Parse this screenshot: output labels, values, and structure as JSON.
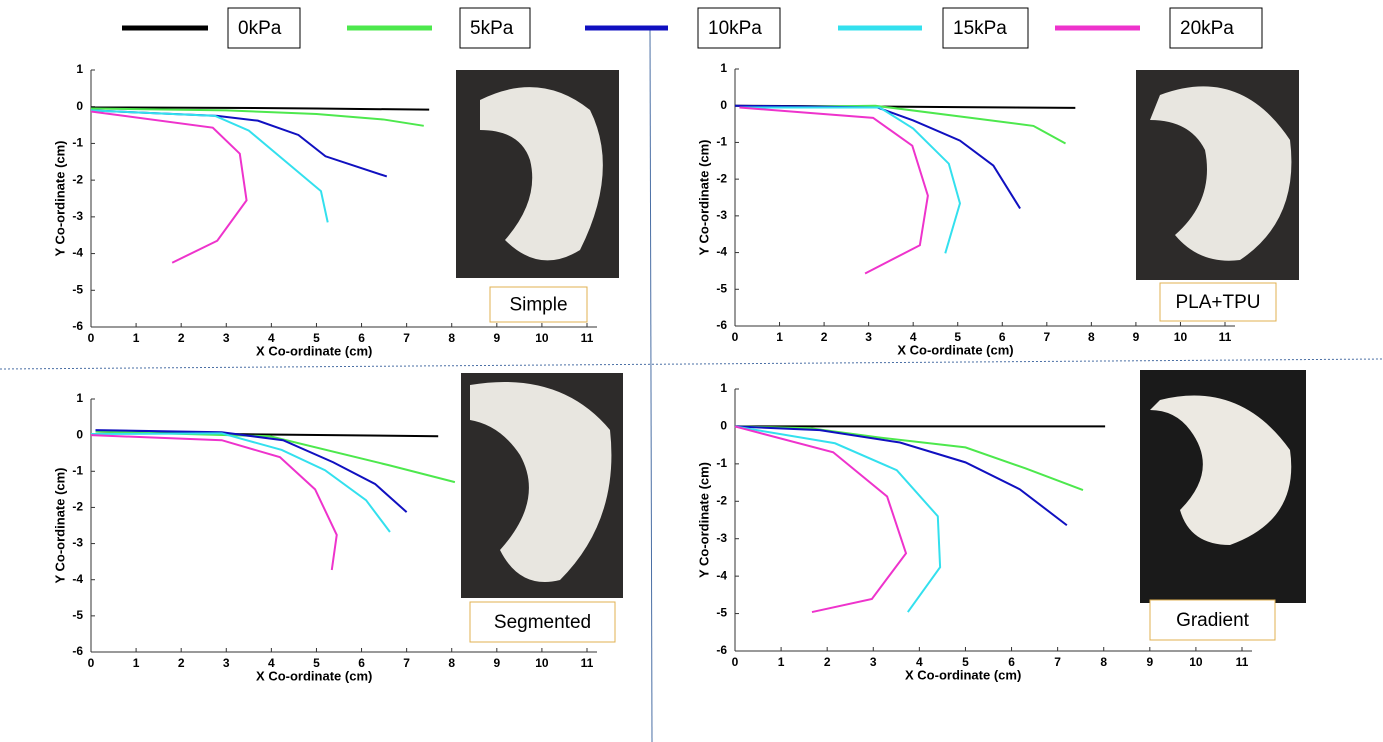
{
  "legend": [
    {
      "name": "0kPa",
      "color": "#000000"
    },
    {
      "name": "5kPa",
      "color": "#4de84d"
    },
    {
      "name": "10kPa",
      "color": "#1010c0"
    },
    {
      "name": "15kPa",
      "color": "#33e0ee"
    },
    {
      "name": "20kPa",
      "color": "#ee33cc"
    }
  ],
  "chart_data": [
    {
      "type": "line",
      "label": "Simple",
      "xlabel": "X Co-ordinate (cm)",
      "ylabel": "Y Co-ordinate (cm)",
      "xlim": [
        0,
        11
      ],
      "ylim": [
        -6,
        1
      ],
      "xticks": [
        0,
        1,
        2,
        3,
        4,
        5,
        6,
        7,
        8,
        9,
        10,
        11
      ],
      "yticks": [
        -6,
        -5,
        -4,
        -3,
        -2,
        -1,
        0,
        1
      ],
      "series": [
        {
          "x": [
            0,
            3,
            5,
            7.5
          ],
          "values": [
            -0.02,
            -0.03,
            -0.05,
            -0.08
          ]
        },
        {
          "x": [
            0,
            3,
            5,
            6.5,
            7.38
          ],
          "values": [
            -0.05,
            -0.1,
            -0.2,
            -0.35,
            -0.52
          ]
        },
        {
          "x": [
            0,
            2.8,
            3.7,
            4.6,
            5.2,
            6.56
          ],
          "values": [
            -0.1,
            -0.25,
            -0.38,
            -0.77,
            -1.35,
            -1.9
          ]
        },
        {
          "x": [
            0,
            2.75,
            3.5,
            5.1,
            5.25
          ],
          "values": [
            -0.1,
            -0.25,
            -0.65,
            -2.3,
            -3.15
          ]
        },
        {
          "x": [
            0,
            2.7,
            3.3,
            3.45,
            2.8,
            1.8
          ],
          "values": [
            -0.13,
            -0.57,
            -1.28,
            -2.55,
            -3.65,
            -4.25
          ]
        }
      ]
    },
    {
      "type": "line",
      "label": "PLA+TPU",
      "xlabel": "X Co-ordinate (cm)",
      "ylabel": "Y Co-ordinate (cm)",
      "xlim": [
        0,
        11
      ],
      "ylim": [
        -6,
        1
      ],
      "xticks": [
        0,
        1,
        2,
        3,
        4,
        5,
        6,
        7,
        8,
        9,
        10,
        11
      ],
      "yticks": [
        -6,
        -5,
        -4,
        -3,
        -2,
        -1,
        0,
        1
      ],
      "series": [
        {
          "x": [
            0,
            3,
            5,
            7.64
          ],
          "values": [
            0,
            -0.02,
            -0.04,
            -0.06
          ]
        },
        {
          "x": [
            0.1,
            3.15,
            5.3,
            6.7,
            7.42
          ],
          "values": [
            -0.05,
            0,
            -0.33,
            -0.55,
            -1.03
          ]
        },
        {
          "x": [
            0,
            3.2,
            4,
            5.05,
            5.8,
            6.4
          ],
          "values": [
            0,
            -0.05,
            -0.4,
            -0.95,
            -1.63,
            -2.8
          ]
        },
        {
          "x": [
            0.1,
            3.25,
            4,
            4.8,
            5.05,
            4.72
          ],
          "values": [
            -0.05,
            -0.05,
            -0.62,
            -1.58,
            -2.66,
            -4.02
          ]
        },
        {
          "x": [
            0.1,
            3.1,
            3.98,
            4.33,
            4.15,
            2.92
          ],
          "values": [
            -0.05,
            -0.33,
            -1.09,
            -2.45,
            -3.8,
            -4.57
          ]
        }
      ]
    },
    {
      "type": "line",
      "label": "Segmented",
      "xlabel": "X Co-ordinate (cm)",
      "ylabel": "Y Co-ordinate (cm)",
      "xlim": [
        0,
        11
      ],
      "ylim": [
        -6,
        1
      ],
      "xticks": [
        0,
        1,
        2,
        3,
        4,
        5,
        6,
        7,
        8,
        9,
        10,
        11
      ],
      "yticks": [
        -6,
        -5,
        -4,
        -3,
        -2,
        -1,
        0,
        1
      ],
      "series": [
        {
          "x": [
            0.1,
            3,
            7.7
          ],
          "values": [
            0.1,
            0.03,
            -0.03
          ]
        },
        {
          "x": [
            0.1,
            3.97,
            6.6,
            8.07
          ],
          "values": [
            0.1,
            -0.03,
            -0.83,
            -1.3
          ]
        },
        {
          "x": [
            0.1,
            2.9,
            4.26,
            5.37,
            6.3,
            7
          ],
          "values": [
            0.14,
            0.08,
            -0.14,
            -0.75,
            -1.35,
            -2.13
          ]
        },
        {
          "x": [
            0,
            2.9,
            4.23,
            5.19,
            6.1,
            6.63
          ],
          "values": [
            0.03,
            0.05,
            -0.41,
            -0.97,
            -1.8,
            -2.68
          ]
        },
        {
          "x": [
            0,
            2.9,
            4.19,
            4.97,
            5.45,
            5.34
          ],
          "values": [
            0,
            -0.14,
            -0.61,
            -1.5,
            -2.76,
            -3.73
          ]
        }
      ]
    },
    {
      "type": "line",
      "label": "Gradient",
      "xlabel": "X Co-ordinate (cm)",
      "ylabel": "Y Co-ordinate (cm)",
      "xlim": [
        0,
        11
      ],
      "ylim": [
        -6,
        1
      ],
      "xticks": [
        0,
        1,
        2,
        3,
        4,
        5,
        6,
        7,
        8,
        9,
        10,
        11
      ],
      "yticks": [
        -6,
        -5,
        -4,
        -3,
        -2,
        -1,
        0,
        1
      ],
      "series": [
        {
          "x": [
            0,
            2,
            4,
            6.5,
            8.03
          ],
          "values": [
            0,
            0,
            0,
            0,
            0
          ]
        },
        {
          "x": [
            0,
            1.63,
            3.15,
            5,
            6.3,
            7.55
          ],
          "values": [
            0,
            -0.05,
            -0.3,
            -0.56,
            -1.12,
            -1.7
          ]
        },
        {
          "x": [
            0,
            1.84,
            3.58,
            5,
            6.18,
            7.2
          ],
          "values": [
            0,
            -0.1,
            -0.43,
            -0.96,
            -1.68,
            -2.64
          ]
        },
        {
          "x": [
            0,
            2.17,
            3.51,
            4.4,
            4.45,
            3.75
          ],
          "values": [
            0,
            -0.45,
            -1.17,
            -2.4,
            -3.76,
            -4.96
          ]
        },
        {
          "x": [
            0,
            2.13,
            3.3,
            3.71,
            2.97,
            1.67
          ],
          "values": [
            0,
            -0.69,
            -1.87,
            -3.39,
            -4.61,
            -4.96
          ]
        }
      ]
    }
  ]
}
